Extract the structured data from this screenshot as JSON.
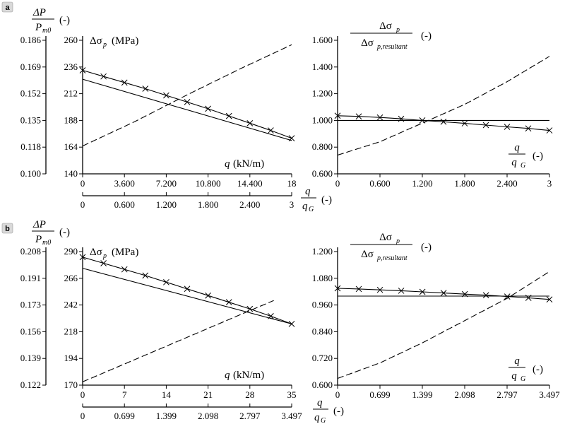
{
  "panels": [
    {
      "badge": "a",
      "pressure_axis": {
        "label_num": "ΔP",
        "label_den_main": "P",
        "label_den_sub": "m0",
        "unit": "(-)",
        "ticks": [
          "0.100",
          "0.118",
          "0.135",
          "0.152",
          "0.169",
          "0.186"
        ]
      },
      "q_axis_label": "q (kN/m)",
      "qg_axis": {
        "num": "q",
        "den_main": "q",
        "den_sub": "G",
        "unit": "(-)"
      }
    },
    {
      "badge": "b",
      "pressure_axis": {
        "label_num": "ΔP",
        "label_den_main": "P",
        "label_den_sub": "m0",
        "unit": "(-)",
        "ticks": [
          "0.122",
          "0.139",
          "0.156",
          "0.173",
          "0.191",
          "0.208"
        ]
      },
      "q_axis_label": "q (kN/m)",
      "qg_axis": {
        "num": "q",
        "den_main": "q",
        "den_sub": "G",
        "unit": "(-)"
      }
    }
  ],
  "chart_data": [
    {
      "type": "line",
      "ylabel": "Δσp (MPa)",
      "xlabel": "q (kN/m)",
      "xlim": [
        0,
        18
      ],
      "ylim": [
        140,
        260
      ],
      "xticks": [
        "0",
        "3.600",
        "7.200",
        "10.800",
        "14.400",
        "18"
      ],
      "yticks": [
        "140",
        "164",
        "188",
        "212",
        "236",
        "260"
      ],
      "x2label": "q/qG (-)",
      "x2ticks": [
        "0",
        "0.600",
        "1.200",
        "1.800",
        "2.400",
        "3"
      ],
      "series": [
        {
          "style": "solid",
          "points": [
            [
              0,
              225
            ],
            [
              18,
              170
            ]
          ]
        },
        {
          "style": "solid-x",
          "points": [
            [
              0,
              233
            ],
            [
              1.8,
              227.5
            ],
            [
              3.6,
              222
            ],
            [
              5.4,
              216.5
            ],
            [
              7.2,
              210.5
            ],
            [
              9,
              204.5
            ],
            [
              10.8,
              198.5
            ],
            [
              12.6,
              192
            ],
            [
              14.4,
              185.5
            ],
            [
              16.2,
              179
            ],
            [
              18,
              172
            ]
          ]
        },
        {
          "style": "dashed",
          "points": [
            [
              0,
              165
            ],
            [
              4.5,
              187
            ],
            [
              9,
              211
            ],
            [
              13.5,
              234
            ],
            [
              18,
              256
            ]
          ]
        }
      ]
    },
    {
      "type": "line",
      "ylabel": "Δσp / Δσp,resultant (-)",
      "xlabel": "q/qG (-)",
      "xlim": [
        0,
        3
      ],
      "ylim": [
        0.6,
        1.6
      ],
      "xticks": [
        "0",
        "0.600",
        "1.200",
        "1.800",
        "2.400",
        "3"
      ],
      "yticks": [
        "0.600",
        "0.800",
        "1.000",
        "1.200",
        "1.400",
        "1.600"
      ],
      "series": [
        {
          "style": "solid",
          "points": [
            [
              0,
              1.0
            ],
            [
              3,
              1.0
            ]
          ]
        },
        {
          "style": "solid-x",
          "points": [
            [
              0,
              1.035
            ],
            [
              0.3,
              1.03
            ],
            [
              0.6,
              1.022
            ],
            [
              0.9,
              1.012
            ],
            [
              1.2,
              1.0
            ],
            [
              1.5,
              0.99
            ],
            [
              1.8,
              0.978
            ],
            [
              2.1,
              0.965
            ],
            [
              2.4,
              0.952
            ],
            [
              2.7,
              0.94
            ],
            [
              3,
              0.925
            ]
          ]
        },
        {
          "style": "dashed",
          "points": [
            [
              0,
              0.74
            ],
            [
              0.6,
              0.84
            ],
            [
              1.2,
              0.98
            ],
            [
              1.8,
              1.12
            ],
            [
              2.4,
              1.29
            ],
            [
              3,
              1.48
            ]
          ]
        }
      ]
    },
    {
      "type": "line",
      "ylabel": "Δσp (MPa)",
      "xlabel": "q (kN/m)",
      "xlim": [
        0,
        35
      ],
      "ylim": [
        170,
        290
      ],
      "xticks": [
        "0",
        "7",
        "14",
        "21",
        "28",
        "35"
      ],
      "yticks": [
        "170",
        "194",
        "218",
        "242",
        "266",
        "290"
      ],
      "x2label": "q/qG (-)",
      "x2ticks": [
        "0",
        "0.699",
        "1.399",
        "2.098",
        "2.797",
        "3.497"
      ],
      "series": [
        {
          "style": "solid",
          "points": [
            [
              0,
              275
            ],
            [
              35,
              225
            ]
          ]
        },
        {
          "style": "solid-x",
          "points": [
            [
              0,
              285
            ],
            [
              3.5,
              279.5
            ],
            [
              7,
              274
            ],
            [
              10.5,
              268.5
            ],
            [
              14,
              262.5
            ],
            [
              17.5,
              256.5
            ],
            [
              21,
              250.5
            ],
            [
              24.5,
              244.5
            ],
            [
              28,
              238.5
            ],
            [
              31.5,
              232
            ],
            [
              35,
              225
            ]
          ]
        },
        {
          "style": "dashed",
          "points": [
            [
              0,
              173
            ],
            [
              7,
              189
            ],
            [
              14,
              205
            ],
            [
              21,
              221
            ],
            [
              28,
              237
            ],
            [
              32,
              246
            ]
          ]
        }
      ]
    },
    {
      "type": "line",
      "ylabel": "Δσp / Δσp,resultant (-)",
      "xlabel": "q/qG (-)",
      "xlim": [
        0,
        3.497
      ],
      "ylim": [
        0.6,
        1.2
      ],
      "xticks": [
        "0",
        "0.699",
        "1.399",
        "2.098",
        "2.797",
        "3.497"
      ],
      "yticks": [
        "0.600",
        "0.720",
        "0.840",
        "0.960",
        "1.080",
        "1.200"
      ],
      "series": [
        {
          "style": "solid",
          "points": [
            [
              0,
              1.0
            ],
            [
              3.497,
              1.0
            ]
          ]
        },
        {
          "style": "solid-x",
          "points": [
            [
              0,
              1.035
            ],
            [
              0.35,
              1.032
            ],
            [
              0.7,
              1.028
            ],
            [
              1.05,
              1.024
            ],
            [
              1.4,
              1.019
            ],
            [
              1.75,
              1.014
            ],
            [
              2.1,
              1.009
            ],
            [
              2.45,
              1.004
            ],
            [
              2.8,
              0.998
            ],
            [
              3.15,
              0.992
            ],
            [
              3.497,
              0.985
            ]
          ]
        },
        {
          "style": "dashed",
          "points": [
            [
              0,
              0.63
            ],
            [
              0.7,
              0.7
            ],
            [
              1.4,
              0.79
            ],
            [
              2.1,
              0.89
            ],
            [
              2.8,
              0.99
            ],
            [
              3.497,
              1.11
            ]
          ]
        }
      ]
    }
  ]
}
